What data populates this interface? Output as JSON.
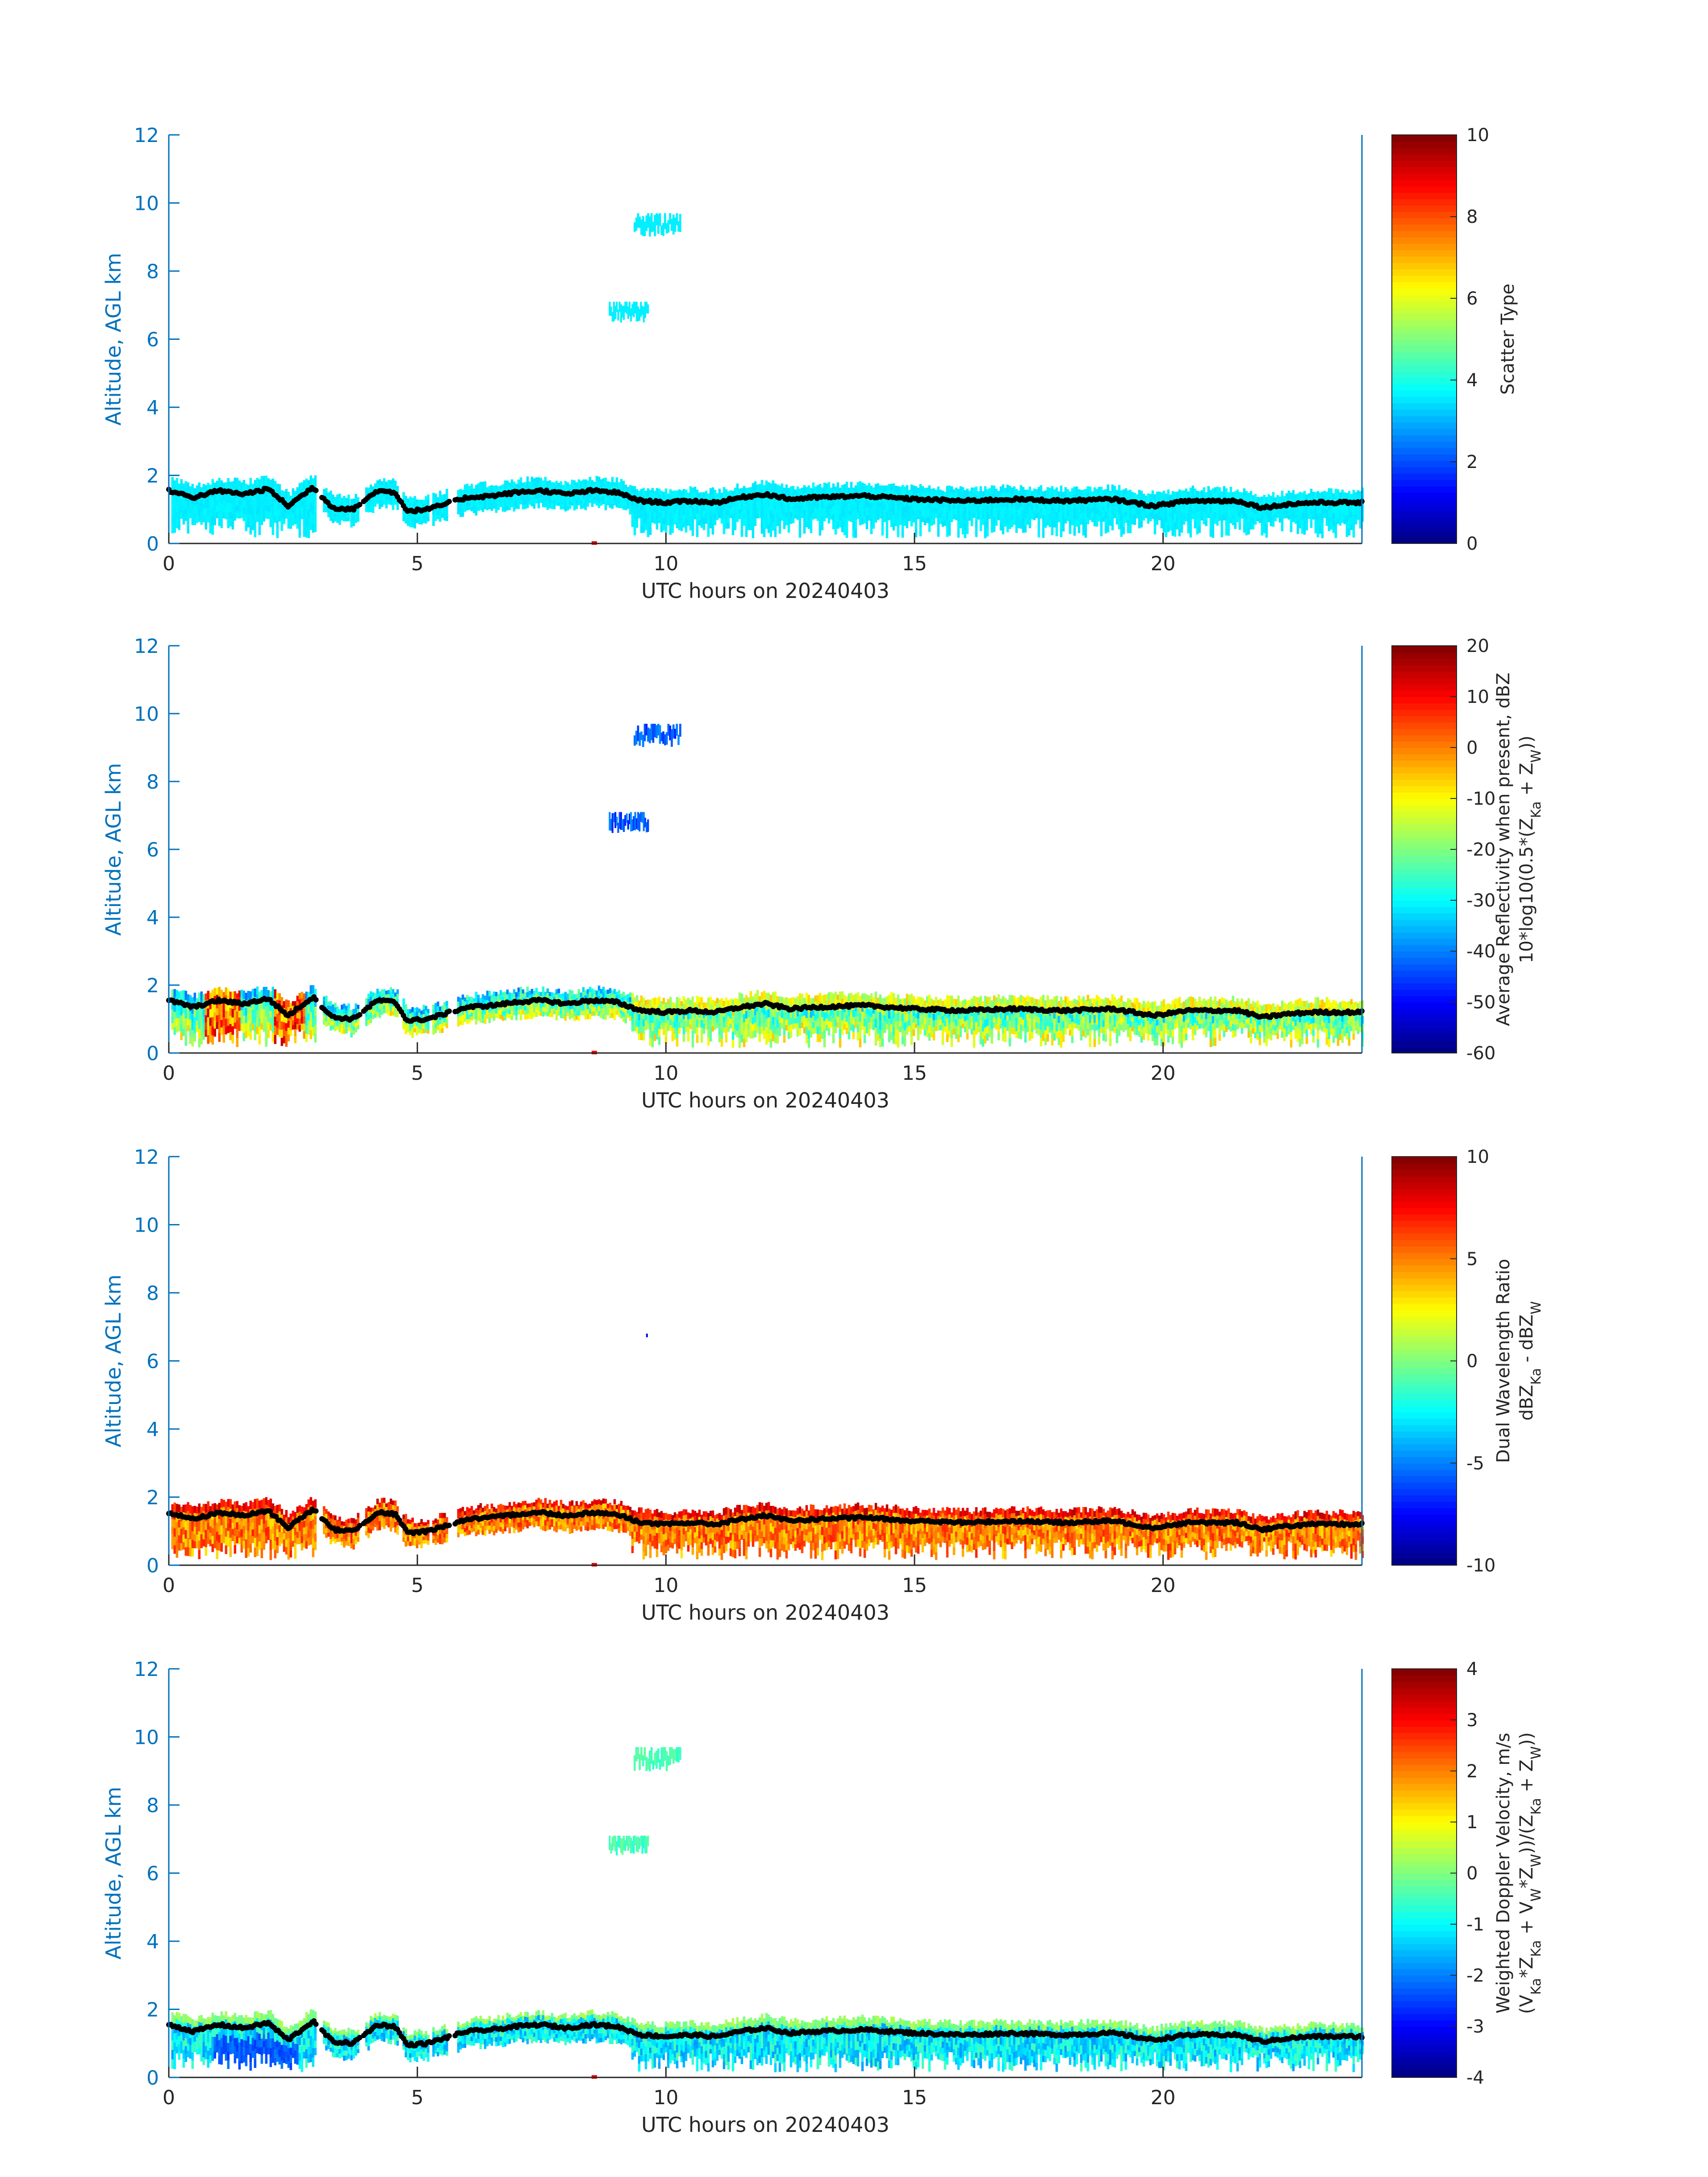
{
  "chart_data": [
    {
      "type": "heatmap",
      "xlabel": "UTC hours on 20240403",
      "ylabel": "Altitude, AGL km",
      "xlim": [
        0,
        24
      ],
      "ylim": [
        0,
        12
      ],
      "xticks": [
        "0",
        "5",
        "10",
        "15",
        "20"
      ],
      "yticks": [
        "0",
        "2",
        "4",
        "6",
        "8",
        "10",
        "12"
      ],
      "colorbar": {
        "label_lines": [
          "Scatter Type"
        ],
        "range": [
          0,
          10
        ],
        "ticks": [
          "0",
          "2",
          "4",
          "6",
          "8",
          "10"
        ]
      },
      "palette": "jet",
      "fill_value": 3.6,
      "fill_note": "low cloud field near 0.3–1.9 km with cloud-base line ~1.2–1.6 km"
    },
    {
      "type": "heatmap",
      "xlabel": "UTC hours on 20240403",
      "ylabel": "Altitude, AGL km",
      "xlim": [
        0,
        24
      ],
      "ylim": [
        0,
        12
      ],
      "xticks": [
        "0",
        "5",
        "10",
        "15",
        "20"
      ],
      "yticks": [
        "0",
        "2",
        "4",
        "6",
        "8",
        "10",
        "12"
      ],
      "colorbar": {
        "label_lines": [
          "Average Reflectivity when present, dBZ",
          "10*log10(0.5*(Z_Ka + Z_W))"
        ],
        "range": [
          -60,
          20
        ],
        "ticks": [
          "-60",
          "-50",
          "-40",
          "-30",
          "-20",
          "-10",
          "0",
          "10",
          "20"
        ]
      },
      "palette": "jet",
      "fill_value": -32
    },
    {
      "type": "heatmap",
      "xlabel": "UTC hours on 20240403",
      "ylabel": "Altitude, AGL km",
      "xlim": [
        0,
        24
      ],
      "ylim": [
        0,
        12
      ],
      "xticks": [
        "0",
        "5",
        "10",
        "15",
        "20"
      ],
      "yticks": [
        "0",
        "2",
        "4",
        "6",
        "8",
        "10",
        "12"
      ],
      "colorbar": {
        "label_lines": [
          "Dual Wavelength Ratio",
          "dBZ_Ka - dBZ_W"
        ],
        "range": [
          -10,
          10
        ],
        "ticks": [
          "-10",
          "-5",
          "0",
          "5",
          "10"
        ]
      },
      "palette": "jet",
      "fill_value": 6.5
    },
    {
      "type": "heatmap",
      "xlabel": "UTC hours on 20240403",
      "ylabel": "Altitude, AGL km",
      "xlim": [
        0,
        24
      ],
      "ylim": [
        0,
        12
      ],
      "xticks": [
        "0",
        "5",
        "10",
        "15",
        "20"
      ],
      "yticks": [
        "0",
        "2",
        "4",
        "6",
        "8",
        "10",
        "12"
      ],
      "colorbar": {
        "label_lines": [
          "Weighted Doppler Velocity, m/s",
          "(V_Ka*Z_Ka + V_W*Z_W))/(Z_Ka + Z_W))"
        ],
        "range": [
          -4,
          4
        ],
        "ticks": [
          "-4",
          "-3",
          "-2",
          "-1",
          "0",
          "1",
          "2",
          "3",
          "4"
        ]
      },
      "palette": "jet",
      "fill_value": -1.1
    }
  ],
  "cloud_segments_hours": [
    [
      0.05,
      2.95
    ],
    [
      3.1,
      3.6
    ],
    [
      3.65,
      3.8
    ],
    [
      3.95,
      4.6
    ],
    [
      4.7,
      5.2
    ],
    [
      5.3,
      5.6
    ],
    [
      5.8,
      24.0
    ]
  ],
  "upper_cloud_patches": [
    {
      "x": [
        9.35,
        10.3
      ],
      "y": [
        8.9,
        9.7
      ]
    },
    {
      "x": [
        8.85,
        9.65
      ],
      "y": [
        6.4,
        7.1
      ]
    }
  ],
  "cloud_base_line_km": [
    [
      0.0,
      1.55
    ],
    [
      0.5,
      1.35
    ],
    [
      1.0,
      1.55
    ],
    [
      1.5,
      1.45
    ],
    [
      2.0,
      1.6
    ],
    [
      2.4,
      1.1
    ],
    [
      2.9,
      1.65
    ],
    [
      3.3,
      1.05
    ],
    [
      3.7,
      1.0
    ],
    [
      4.2,
      1.55
    ],
    [
      4.55,
      1.5
    ],
    [
      4.8,
      0.95
    ],
    [
      5.2,
      1.0
    ],
    [
      6.0,
      1.35
    ],
    [
      6.5,
      1.4
    ],
    [
      7.0,
      1.5
    ],
    [
      7.5,
      1.55
    ],
    [
      8.0,
      1.45
    ],
    [
      8.5,
      1.55
    ],
    [
      9.0,
      1.5
    ],
    [
      9.5,
      1.25
    ],
    [
      10.0,
      1.2
    ],
    [
      10.5,
      1.25
    ],
    [
      11.0,
      1.2
    ],
    [
      11.5,
      1.35
    ],
    [
      12.0,
      1.45
    ],
    [
      12.5,
      1.3
    ],
    [
      13.0,
      1.35
    ],
    [
      14.0,
      1.4
    ],
    [
      15.0,
      1.3
    ],
    [
      16.0,
      1.25
    ],
    [
      17.0,
      1.3
    ],
    [
      18.0,
      1.25
    ],
    [
      19.0,
      1.3
    ],
    [
      19.8,
      1.1
    ],
    [
      20.5,
      1.25
    ],
    [
      21.5,
      1.25
    ],
    [
      22.0,
      1.05
    ],
    [
      22.5,
      1.15
    ],
    [
      23.0,
      1.2
    ],
    [
      24.0,
      1.2
    ]
  ],
  "red_marker_hours": 8.55
}
